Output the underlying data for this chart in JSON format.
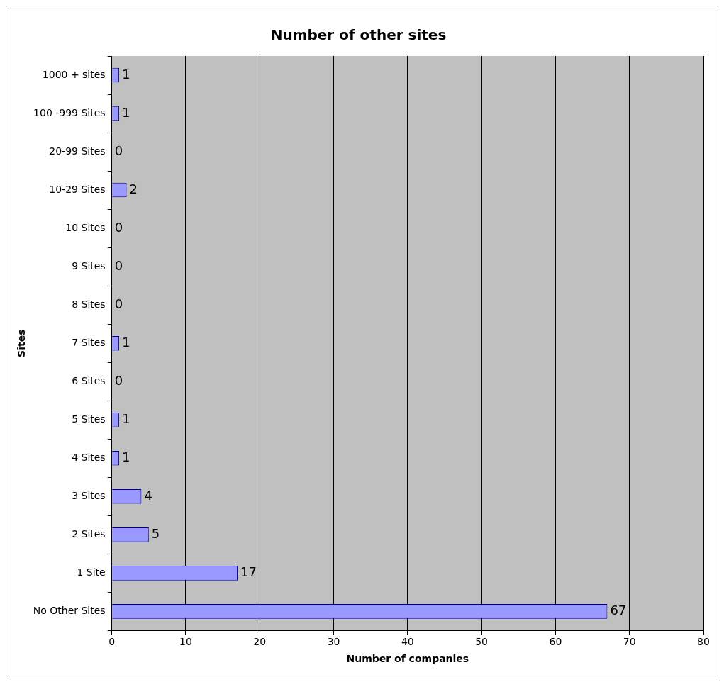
{
  "chart_data": {
    "type": "bar",
    "orientation": "horizontal",
    "title": "Number of other sites",
    "xlabel": "Number of companies",
    "ylabel": "Sites",
    "categories": [
      "1000 + sites",
      "100 -999 Sites",
      "20-99 Sites",
      "10-29 Sites",
      "10 Sites",
      "9 Sites",
      "8 Sites",
      "7 Sites",
      "6 Sites",
      "5 Sites",
      "4 Sites",
      "3 Sites",
      "2 Sites",
      "1 Site",
      "No Other Sites"
    ],
    "values": [
      1,
      1,
      0,
      2,
      0,
      0,
      0,
      1,
      0,
      1,
      1,
      4,
      5,
      17,
      67
    ],
    "color": "#9999ff",
    "xlim": [
      0,
      80
    ],
    "xticks": [
      0,
      10,
      20,
      30,
      40,
      50,
      60,
      70,
      80
    ],
    "grid": "x",
    "data_labels": true,
    "legend": false
  }
}
